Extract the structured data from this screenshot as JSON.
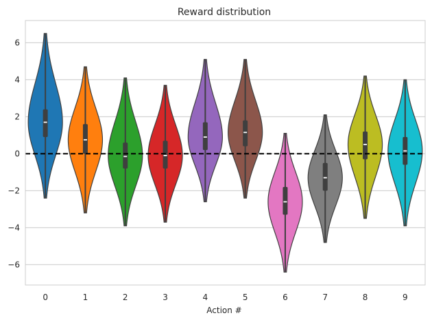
{
  "chart_data": {
    "type": "violin",
    "title": "Reward distribution",
    "xlabel": "Action #",
    "ylabel": "",
    "ylim": [
      -7.1,
      7.2
    ],
    "yticks": [
      -6,
      -4,
      -2,
      0,
      2,
      4,
      6
    ],
    "grid": "horizontal",
    "reference_line": {
      "y": 0,
      "style": "dashed",
      "color": "#000000"
    },
    "categories": [
      "0",
      "1",
      "2",
      "3",
      "4",
      "5",
      "6",
      "7",
      "8",
      "9"
    ],
    "series": [
      {
        "color": "#1f77b4",
        "values": {
          "min": -2.4,
          "q1": 0.9,
          "median": 1.7,
          "q3": 2.4,
          "max": 6.5,
          "peak": 1.7
        }
      },
      {
        "color": "#ff7f0e",
        "values": {
          "min": -3.2,
          "q1": 0.0,
          "median": 0.75,
          "q3": 1.6,
          "max": 4.7,
          "peak": 0.75
        }
      },
      {
        "color": "#2ca02c",
        "values": {
          "min": -3.9,
          "q1": -0.8,
          "median": -0.15,
          "q3": 0.6,
          "max": 4.1,
          "peak": -0.1
        }
      },
      {
        "color": "#d62728",
        "values": {
          "min": -3.7,
          "q1": -0.8,
          "median": -0.1,
          "q3": 0.7,
          "max": 3.7,
          "peak": -0.1
        }
      },
      {
        "color": "#9467bd",
        "values": {
          "min": -2.6,
          "q1": 0.2,
          "median": 0.9,
          "q3": 1.7,
          "max": 5.1,
          "peak": 0.9
        }
      },
      {
        "color": "#8c564b",
        "values": {
          "min": -2.4,
          "q1": 0.4,
          "median": 1.15,
          "q3": 1.8,
          "max": 5.1,
          "peak": 1.15
        }
      },
      {
        "color": "#e377c2",
        "values": {
          "min": -6.4,
          "q1": -3.3,
          "median": -2.6,
          "q3": -1.8,
          "max": 1.1,
          "peak": -2.6
        }
      },
      {
        "color": "#7f7f7f",
        "values": {
          "min": -4.8,
          "q1": -2.0,
          "median": -1.3,
          "q3": -0.5,
          "max": 2.1,
          "peak": -1.3
        }
      },
      {
        "color": "#bcbd22",
        "values": {
          "min": -3.5,
          "q1": -0.3,
          "median": 0.5,
          "q3": 1.2,
          "max": 4.2,
          "peak": 0.5
        }
      },
      {
        "color": "#17becf",
        "values": {
          "min": -3.9,
          "q1": -0.6,
          "median": 0.15,
          "q3": 0.9,
          "max": 4.0,
          "peak": 0.15
        }
      }
    ]
  }
}
